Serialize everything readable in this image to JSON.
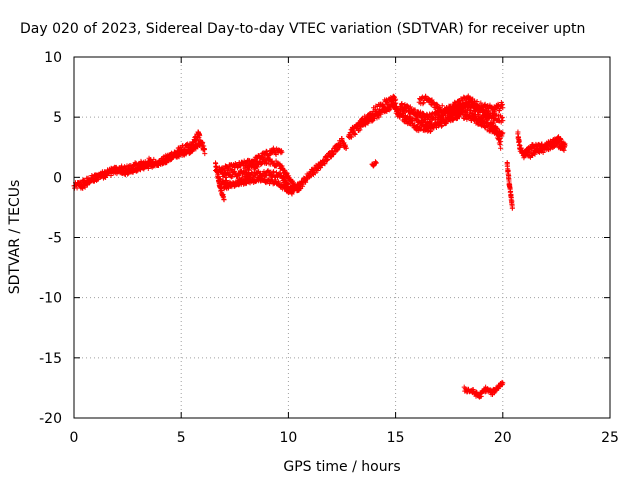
{
  "chart_data": {
    "type": "scatter",
    "title": "Day 020 of 2023, Sidereal Day-to-day VTEC variation (SDTVAR) for receiver uptn",
    "xlabel": "GPS time / hours",
    "ylabel": "SDTVAR / TECUs",
    "xlim": [
      0,
      25
    ],
    "ylim": [
      -20,
      10
    ],
    "x_ticks": [
      0,
      5,
      10,
      15,
      20,
      25
    ],
    "y_ticks": [
      -20,
      -15,
      -10,
      -5,
      0,
      5,
      10
    ],
    "grid": true,
    "marker": "plus",
    "color": "#ff0000",
    "series": [
      {
        "name": "SDTVAR",
        "segments": [
          {
            "points": [
              [
                0.0,
                -0.8
              ],
              [
                0.5,
                -0.4
              ],
              [
                1.0,
                0.0
              ],
              [
                1.5,
                0.3
              ],
              [
                2.0,
                0.6
              ],
              [
                2.5,
                0.7
              ],
              [
                3.0,
                1.0
              ],
              [
                3.5,
                1.3
              ],
              [
                4.0,
                1.2
              ],
              [
                4.5,
                1.8
              ],
              [
                5.0,
                2.3
              ],
              [
                5.5,
                2.6
              ],
              [
                5.8,
                3.6
              ],
              [
                6.1,
                2.2
              ]
            ],
            "band": 0.6
          },
          {
            "points": [
              [
                0.3,
                -0.9
              ],
              [
                0.8,
                -0.3
              ],
              [
                1.3,
                0.2
              ],
              [
                1.9,
                0.7
              ],
              [
                2.4,
                0.4
              ],
              [
                3.1,
                0.8
              ],
              [
                3.7,
                1.0
              ],
              [
                4.3,
                1.4
              ],
              [
                4.9,
                1.9
              ],
              [
                5.4,
                2.2
              ],
              [
                5.9,
                2.8
              ]
            ],
            "band": 0.4
          },
          {
            "points": [
              [
                6.6,
                1.2
              ],
              [
                6.8,
                -0.8
              ],
              [
                7.0,
                -1.8
              ]
            ],
            "band": 0.3
          },
          {
            "points": [
              [
                6.6,
                0.5
              ],
              [
                7.5,
                0.9
              ],
              [
                8.3,
                1.3
              ],
              [
                8.8,
                1.8
              ],
              [
                9.3,
                2.2
              ],
              [
                9.7,
                2.0
              ]
            ],
            "band": 0.5
          },
          {
            "points": [
              [
                6.8,
                -0.3
              ],
              [
                7.5,
                -0.6
              ],
              [
                8.2,
                0.2
              ],
              [
                9.0,
                0.4
              ],
              [
                9.7,
                0.1
              ],
              [
                10.2,
                -1.3
              ]
            ],
            "band": 0.5
          },
          {
            "points": [
              [
                6.9,
                0.2
              ],
              [
                7.6,
                0.3
              ],
              [
                8.4,
                0.9
              ],
              [
                9.0,
                1.4
              ],
              [
                9.6,
                1.0
              ],
              [
                10.3,
                -0.8
              ],
              [
                10.6,
                -0.6
              ]
            ],
            "band": 0.5
          },
          {
            "points": [
              [
                7.0,
                -0.8
              ],
              [
                7.8,
                -0.4
              ],
              [
                8.6,
                -0.2
              ],
              [
                9.4,
                -0.4
              ],
              [
                10.0,
                -1.1
              ],
              [
                10.5,
                -0.9
              ]
            ],
            "band": 0.4
          },
          {
            "points": [
              [
                10.5,
                -0.8
              ],
              [
                11.0,
                0.3
              ],
              [
                11.5,
                1.0
              ],
              [
                12.0,
                2.0
              ],
              [
                12.5,
                3.0
              ],
              [
                12.7,
                2.6
              ]
            ],
            "band": 0.6
          },
          {
            "points": [
              [
                12.8,
                3.5
              ],
              [
                13.3,
                4.2
              ],
              [
                13.8,
                5.2
              ],
              [
                14.3,
                5.8
              ],
              [
                14.7,
                6.3
              ],
              [
                15.0,
                6.5
              ]
            ],
            "band": 0.8
          },
          {
            "points": [
              [
                13.0,
                4.0
              ],
              [
                13.6,
                4.6
              ],
              [
                14.2,
                5.2
              ],
              [
                14.8,
                5.8
              ]
            ],
            "band": 0.5
          },
          {
            "points": [
              [
                13.9,
                1.0
              ],
              [
                14.1,
                1.3
              ]
            ],
            "band": 0.3
          },
          {
            "points": [
              [
                14.8,
                6.3
              ],
              [
                15.2,
                5.3
              ],
              [
                15.7,
                5.1
              ],
              [
                16.2,
                4.8
              ],
              [
                16.5,
                4.2
              ],
              [
                16.8,
                4.6
              ],
              [
                17.3,
                4.8
              ],
              [
                17.8,
                5.2
              ],
              [
                18.2,
                5.8
              ],
              [
                18.6,
                5.5
              ],
              [
                19.0,
                5.0
              ],
              [
                19.4,
                4.6
              ],
              [
                19.8,
                3.5
              ],
              [
                19.9,
                2.8
              ]
            ],
            "band": 0.8
          },
          {
            "points": [
              [
                15.0,
                5.5
              ],
              [
                15.5,
                4.8
              ],
              [
                16.0,
                4.2
              ],
              [
                16.5,
                4.0
              ],
              [
                17.0,
                4.4
              ],
              [
                17.5,
                4.8
              ],
              [
                18.0,
                5.3
              ],
              [
                18.5,
                5.0
              ],
              [
                19.0,
                4.5
              ],
              [
                19.5,
                4.0
              ],
              [
                20.0,
                3.6
              ]
            ],
            "band": 0.6
          },
          {
            "points": [
              [
                16.1,
                6.3
              ],
              [
                16.4,
                6.5
              ],
              [
                16.7,
                6.2
              ],
              [
                17.0,
                5.8
              ],
              [
                17.4,
                5.6
              ],
              [
                17.8,
                6.0
              ],
              [
                18.2,
                6.4
              ],
              [
                18.5,
                6.5
              ],
              [
                18.8,
                6.0
              ],
              [
                19.2,
                5.8
              ],
              [
                19.6,
                5.6
              ],
              [
                20.0,
                6.0
              ]
            ],
            "band": 0.6
          },
          {
            "points": [
              [
                15.2,
                6.0
              ],
              [
                15.6,
                5.7
              ],
              [
                16.0,
                5.3
              ],
              [
                16.4,
                5.0
              ],
              [
                16.9,
                5.2
              ],
              [
                17.4,
                5.4
              ],
              [
                17.9,
                5.8
              ],
              [
                18.3,
                6.1
              ],
              [
                18.7,
                5.9
              ],
              [
                19.1,
                5.4
              ],
              [
                19.6,
                5.0
              ],
              [
                20.0,
                4.8
              ]
            ],
            "band": 0.5
          },
          {
            "points": [
              [
                20.2,
                1.2
              ],
              [
                20.3,
                -0.5
              ],
              [
                20.45,
                -2.5
              ]
            ],
            "band": 0.4
          },
          {
            "points": [
              [
                20.7,
                3.6
              ],
              [
                20.8,
                2.4
              ],
              [
                21.0,
                1.8
              ],
              [
                21.5,
                2.0
              ],
              [
                22.0,
                2.4
              ],
              [
                22.5,
                2.8
              ],
              [
                22.9,
                2.4
              ]
            ],
            "band": 0.5
          },
          {
            "points": [
              [
                21.0,
                2.0
              ],
              [
                21.4,
                2.6
              ],
              [
                21.8,
                2.6
              ],
              [
                22.2,
                2.8
              ],
              [
                22.6,
                3.2
              ],
              [
                22.9,
                2.6
              ]
            ],
            "band": 0.4
          },
          {
            "points": [
              [
                18.2,
                -17.6
              ],
              [
                18.6,
                -17.8
              ],
              [
                18.9,
                -18.2
              ],
              [
                19.2,
                -17.6
              ],
              [
                19.5,
                -17.9
              ],
              [
                19.8,
                -17.4
              ],
              [
                20.0,
                -17.0
              ]
            ],
            "band": 0.4
          }
        ]
      }
    ]
  }
}
